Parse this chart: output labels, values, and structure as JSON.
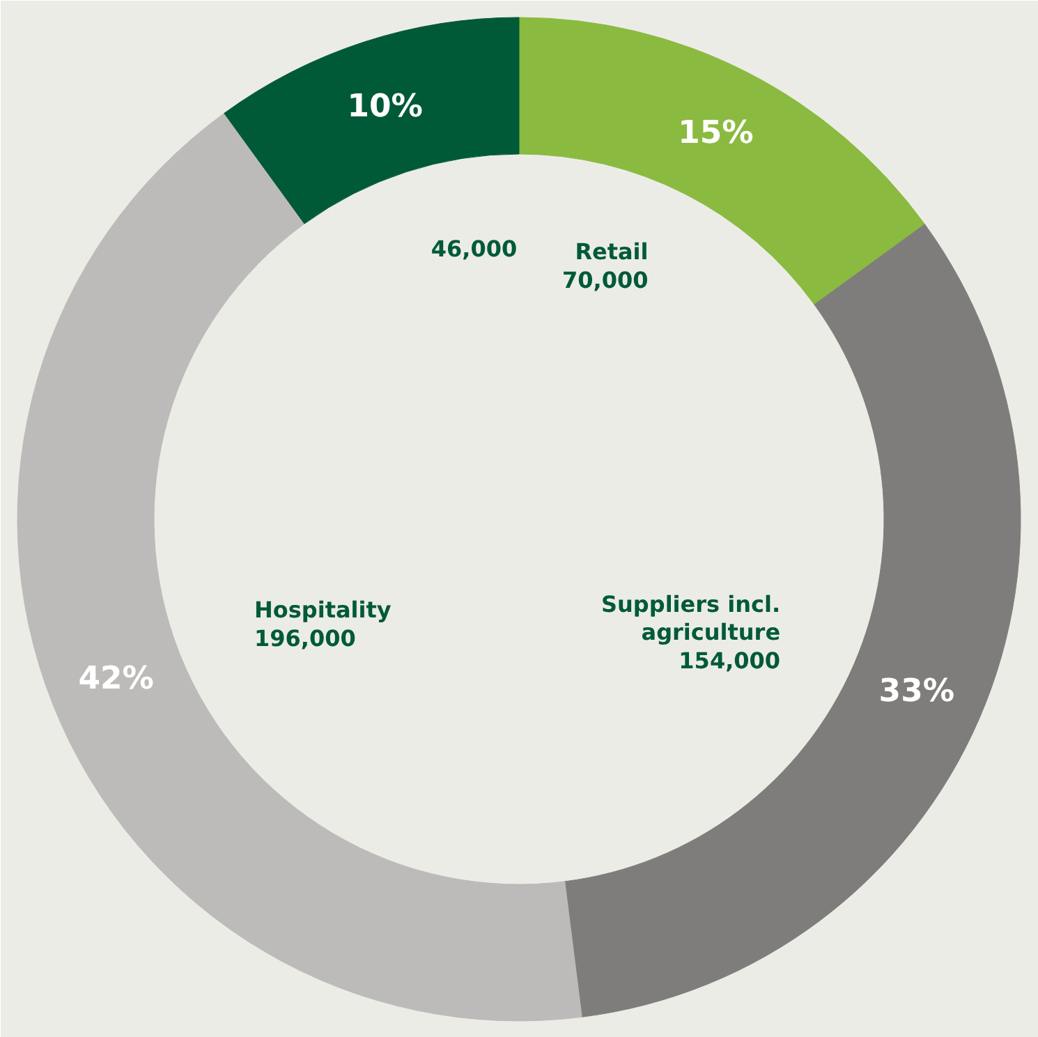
{
  "chart_data": {
    "type": "donut",
    "categories": [
      "Retail",
      "Suppliers incl. agriculture",
      "Hospitality",
      null
    ],
    "values": [
      15,
      33,
      42,
      10
    ],
    "colors": [
      "#8aba3f",
      "#7f7d7b",
      "#bdbbb9",
      "#005a37"
    ],
    "value_labels": [
      "15%",
      "33%",
      "42%",
      "10%"
    ],
    "annotations": [
      "70,000",
      "154,000",
      "196,000",
      "46,000"
    ]
  }
}
